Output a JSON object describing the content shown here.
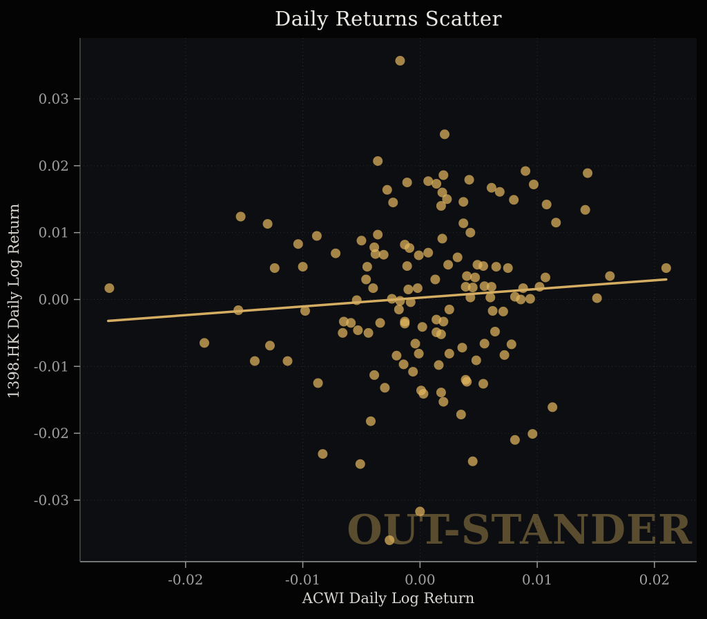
{
  "title": "Daily Returns Scatter",
  "watermark": {
    "text": "OUT-STANDER",
    "color": "#8a7442"
  },
  "chart_data": {
    "type": "scatter",
    "title": "Daily Returns Scatter",
    "xlabel": "ACWI Daily Log Return",
    "ylabel": "1398.HK Daily Log Return",
    "xlim": [
      -0.029,
      0.0236
    ],
    "ylim": [
      -0.0392,
      0.0391
    ],
    "x_ticks": [
      -0.02,
      -0.01,
      0.0,
      0.01,
      0.02
    ],
    "x_tick_labels": [
      "-0.02",
      "-0.01",
      "0.00",
      "0.01",
      "0.02"
    ],
    "y_ticks": [
      0.03,
      0.02,
      0.01,
      0.0,
      -0.01,
      -0.02,
      -0.03
    ],
    "y_tick_labels": [
      "0.03",
      "0.02",
      "0.01",
      "0.00",
      "-0.01",
      "-0.02",
      "-0.03"
    ],
    "grid": "dotted",
    "legend_position": "none",
    "colors": {
      "background": "#040404",
      "panel": "#0d0e11",
      "grid": "#2e2e30",
      "marker": "#e2b55e",
      "marker_opacity": 0.72,
      "trend_line": "#d4ad62",
      "tick_label": "#a0a0a0",
      "spine_bottom": "#9a9a9a",
      "spine_left": "#5a5a5a",
      "title_text": "#ece9e4",
      "axis_label_text": "#d8d5d0"
    },
    "series": [
      {
        "name": "daily-returns-points",
        "type": "scatter",
        "marker_radius": 7,
        "points": [
          [
            -0.0153,
            0.0124
          ],
          [
            -0.013,
            0.0113
          ],
          [
            -0.0124,
            0.0047
          ],
          [
            -0.0265,
            0.0017
          ],
          [
            -0.0017,
            0.0357
          ],
          [
            0.0021,
            0.0247
          ],
          [
            -0.0036,
            0.0207
          ],
          [
            0.002,
            0.0186
          ],
          [
            0.0042,
            0.0179
          ],
          [
            0.0061,
            0.0167
          ],
          [
            0.0068,
            0.0161
          ],
          [
            -0.0011,
            0.0175
          ],
          [
            0.0007,
            0.0177
          ],
          [
            0.0014,
            0.0173
          ],
          [
            -0.0028,
            0.0164
          ],
          [
            0.0019,
            0.016
          ],
          [
            0.0037,
            0.0146
          ],
          [
            -0.0023,
            0.0145
          ],
          [
            0.0023,
            0.015
          ],
          [
            0.0018,
            0.014
          ],
          [
            0.0037,
            0.0114
          ],
          [
            0.0043,
            0.01
          ],
          [
            -0.0088,
            0.0095
          ],
          [
            -0.0104,
            0.0083
          ],
          [
            -0.005,
            0.0088
          ],
          [
            -0.0072,
            0.0069
          ],
          [
            -0.0036,
            0.0097
          ],
          [
            -0.0039,
            0.0078
          ],
          [
            -0.0038,
            0.0068
          ],
          [
            -0.0031,
            0.0067
          ],
          [
            -0.0013,
            0.0082
          ],
          [
            -0.0009,
            0.0077
          ],
          [
            -0.0001,
            0.0066
          ],
          [
            0.0007,
            0.007
          ],
          [
            0.0032,
            0.0063
          ],
          [
            0.0024,
            0.0052
          ],
          [
            -0.01,
            0.0049
          ],
          [
            -0.0011,
            0.005
          ],
          [
            0.0049,
            0.0052
          ],
          [
            0.0054,
            0.005
          ],
          [
            -0.0045,
            0.0049
          ],
          [
            -0.0046,
            0.003
          ],
          [
            0.004,
            0.0035
          ],
          [
            0.0047,
            0.0033
          ],
          [
            0.0013,
            0.003
          ],
          [
            -0.004,
            0.0017
          ],
          [
            -0.001,
            0.0015
          ],
          [
            -0.0002,
            0.0017
          ],
          [
            0.0039,
            0.0019
          ],
          [
            0.0045,
            0.0018
          ],
          [
            0.0055,
            0.002
          ],
          [
            0.0061,
            0.0019
          ],
          [
            0.0019,
            0.0091
          ],
          [
            -0.0087,
            -0.0125
          ],
          [
            0.009,
            0.0192
          ],
          [
            0.0097,
            0.0172
          ],
          [
            0.008,
            0.0149
          ],
          [
            0.0108,
            0.0142
          ],
          [
            0.0143,
            0.0189
          ],
          [
            0.0141,
            0.0134
          ],
          [
            0.0116,
            0.0115
          ],
          [
            0.0065,
            0.0049
          ],
          [
            0.0075,
            0.0047
          ],
          [
            0.0107,
            0.0033
          ],
          [
            0.0162,
            0.0035
          ],
          [
            0.021,
            0.0047
          ],
          [
            0.0088,
            0.0017
          ],
          [
            0.0102,
            0.0019
          ],
          [
            0.0151,
            0.0002
          ],
          [
            0.0081,
            0.0004
          ],
          [
            0.0094,
            0.0001
          ],
          [
            -0.0098,
            -0.0017
          ],
          [
            -0.0054,
            -0.0001
          ],
          [
            -0.0024,
            0.0001
          ],
          [
            -0.0017,
            -0.0002
          ],
          [
            -0.0008,
            -0.0004
          ],
          [
            -0.0018,
            -0.0015
          ],
          [
            -0.0013,
            -0.0033
          ],
          [
            -0.0065,
            -0.0033
          ],
          [
            -0.0059,
            -0.0035
          ],
          [
            -0.0066,
            -0.005
          ],
          [
            -0.0053,
            -0.0046
          ],
          [
            -0.0044,
            -0.005
          ],
          [
            -0.0034,
            -0.0035
          ],
          [
            -0.0013,
            -0.0036
          ],
          [
            0.0002,
            -0.0041
          ],
          [
            -0.0004,
            -0.0066
          ],
          [
            -0.0001,
            -0.0081
          ],
          [
            -0.002,
            -0.0084
          ],
          [
            -0.0014,
            -0.0097
          ],
          [
            0.0014,
            -0.003
          ],
          [
            0.002,
            -0.0033
          ],
          [
            0.0014,
            -0.0049
          ],
          [
            0.0018,
            -0.0052
          ],
          [
            0.0025,
            -0.0015
          ],
          [
            0.0025,
            -0.0081
          ],
          [
            0.0016,
            -0.0098
          ],
          [
            -0.0006,
            -0.0108
          ],
          [
            -0.0039,
            -0.0113
          ],
          [
            -0.003,
            -0.0132
          ],
          [
            0.0001,
            -0.0136
          ],
          [
            0.0003,
            -0.0141
          ],
          [
            0.0018,
            -0.0139
          ],
          [
            0.002,
            -0.0153
          ],
          [
            -0.0042,
            -0.0182
          ],
          [
            0.0035,
            -0.0172
          ],
          [
            0.0036,
            -0.0072
          ],
          [
            0.0039,
            -0.012
          ],
          [
            0.004,
            -0.0123
          ],
          [
            0.0048,
            -0.0091
          ],
          [
            0.0054,
            -0.0126
          ],
          [
            0.0055,
            -0.0066
          ],
          [
            -0.0113,
            -0.0092
          ],
          [
            -0.0083,
            -0.0231
          ],
          [
            -0.0051,
            -0.0246
          ],
          [
            0.0,
            -0.0317
          ],
          [
            -0.0026,
            -0.036
          ],
          [
            0.0045,
            -0.0242
          ],
          [
            0.0043,
            0.0003
          ],
          [
            0.006,
            0.0003
          ],
          [
            -0.0155,
            -0.0016
          ],
          [
            -0.0184,
            -0.0065
          ],
          [
            -0.0128,
            -0.0069
          ],
          [
            -0.0141,
            -0.0092
          ],
          [
            0.0062,
            -0.0017
          ],
          [
            0.0071,
            -0.0018
          ],
          [
            0.0064,
            -0.0048
          ],
          [
            0.0078,
            -0.0067
          ],
          [
            0.0072,
            -0.0083
          ],
          [
            0.0113,
            -0.0161
          ],
          [
            0.0096,
            -0.0201
          ],
          [
            0.0081,
            -0.021
          ],
          [
            0.0086,
            0.0
          ]
        ]
      },
      {
        "name": "trend-line",
        "type": "line",
        "line_width": 3.5,
        "points": [
          [
            -0.0266,
            -0.0032
          ],
          [
            0.021,
            0.003
          ]
        ]
      }
    ]
  }
}
